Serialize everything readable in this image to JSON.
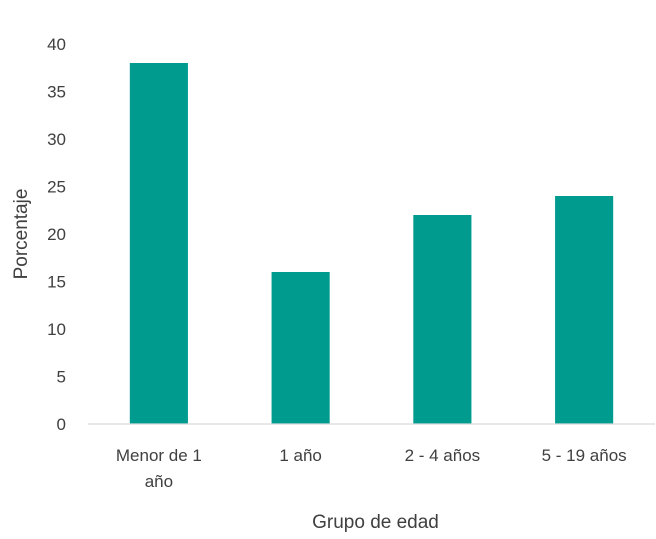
{
  "chart_data": {
    "type": "bar",
    "title": "",
    "xlabel": "Grupo de edad",
    "ylabel": "Porcentaje",
    "categories": [
      "Menor de 1 año",
      "1 año",
      "2 - 4 años",
      "5 - 19 años"
    ],
    "category_lines": [
      [
        "Menor de 1",
        "año"
      ],
      [
        "1 año"
      ],
      [
        "2 - 4 años"
      ],
      [
        "5 - 19 años"
      ]
    ],
    "values": [
      38,
      16,
      22,
      24
    ],
    "ylim": [
      0,
      40
    ],
    "yticks": [
      0,
      5,
      10,
      15,
      20,
      25,
      30,
      35,
      40
    ],
    "grid": false,
    "legend": "none",
    "bar_color": "#009B8F",
    "axis_color": "#D9D9D9",
    "text_color": "#404040"
  }
}
